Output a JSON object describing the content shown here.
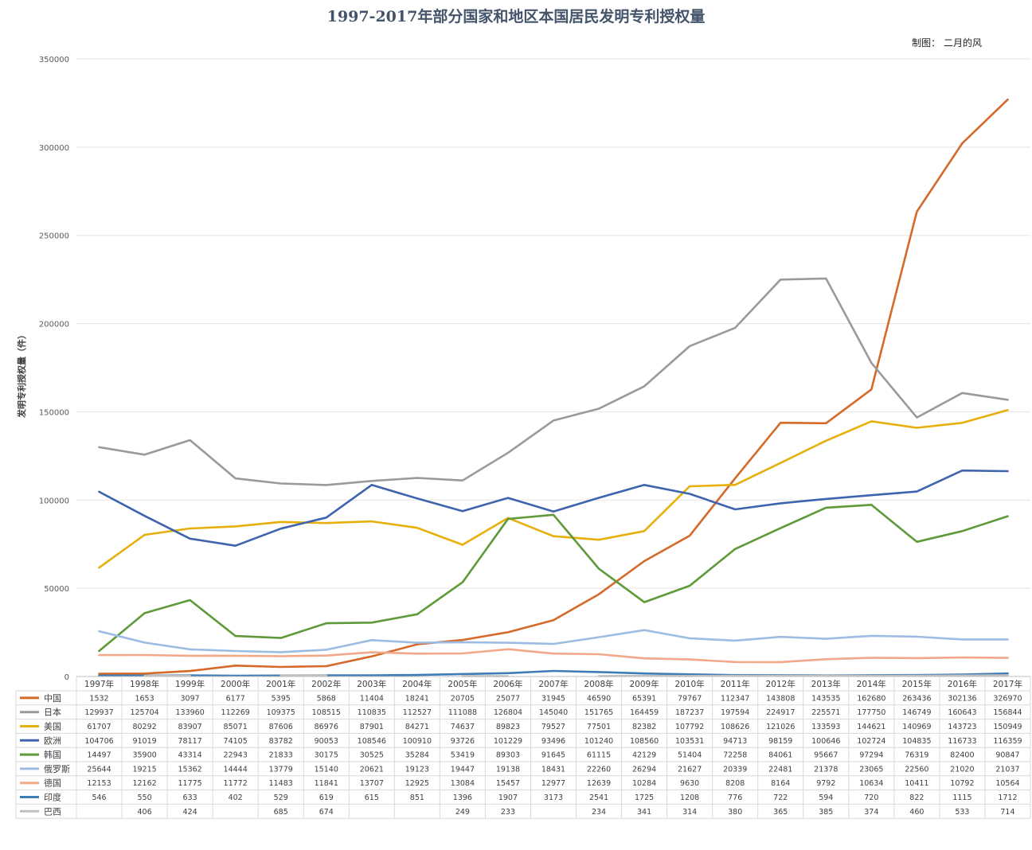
{
  "chart_data": {
    "type": "line",
    "title": "1997-2017年部分国家和地区本国居民发明专利授权量",
    "credit": "制图： 二月的风",
    "ylabel": "发明专利授权量（件）",
    "xlabel": "",
    "ylim": [
      0,
      350000
    ],
    "yticks": [
      "0",
      "50000",
      "100000",
      "150000",
      "200000",
      "250000",
      "300000",
      "350000"
    ],
    "categories": [
      "1997年",
      "1998年",
      "1999年",
      "2000年",
      "2001年",
      "2002年",
      "2003年",
      "2004年",
      "2005年",
      "2006年",
      "2007年",
      "2008年",
      "2009年",
      "2010年",
      "2011年",
      "2012年",
      "2013年",
      "2014年",
      "2015年",
      "2016年",
      "2017年"
    ],
    "grid": true,
    "legend": "data-table-left",
    "series": [
      {
        "name": "中国",
        "color": "#D5692A",
        "values": [
          1532,
          1653,
          3097,
          6177,
          5395,
          5868,
          11404,
          18241,
          20705,
          25077,
          31945,
          46590,
          65391,
          79767,
          112347,
          143808,
          143535,
          162680,
          263436,
          302136,
          326970
        ]
      },
      {
        "name": "日本",
        "color": "#9A9A9A",
        "values": [
          129937,
          125704,
          133960,
          112269,
          109375,
          108515,
          110835,
          112527,
          111088,
          126804,
          145040,
          151765,
          164459,
          187237,
          197594,
          224917,
          225571,
          177750,
          146749,
          160643,
          156844
        ]
      },
      {
        "name": "美国",
        "color": "#E6AF0B",
        "values": [
          61707,
          80292,
          83907,
          85071,
          87606,
          86976,
          87901,
          84271,
          74637,
          89823,
          79527,
          77501,
          82382,
          107792,
          108626,
          121026,
          133593,
          144621,
          140969,
          143723,
          150949
        ]
      },
      {
        "name": "欧洲",
        "color": "#3D64AD",
        "values": [
          104706,
          91019,
          78117,
          74105,
          83782,
          90053,
          108546,
          100910,
          93726,
          101229,
          93496,
          101240,
          108560,
          103531,
          94713,
          98159,
          100646,
          102724,
          104835,
          116733,
          116359
        ]
      },
      {
        "name": "韩国",
        "color": "#5E9A3A",
        "values": [
          14497,
          35900,
          43314,
          22943,
          21833,
          30175,
          30525,
          35284,
          53419,
          89303,
          91645,
          61115,
          42129,
          51404,
          72258,
          84061,
          95667,
          97294,
          76319,
          82400,
          90847
        ]
      },
      {
        "name": "俄罗斯",
        "color": "#9DBCE2",
        "values": [
          25644,
          19215,
          15362,
          14444,
          13779,
          15140,
          20621,
          19123,
          19447,
          19138,
          18431,
          22260,
          26294,
          21627,
          20339,
          22481,
          21378,
          23065,
          22560,
          21020,
          21037
        ]
      },
      {
        "name": "德国",
        "color": "#F1A98A",
        "values": [
          12153,
          12162,
          11775,
          11772,
          11483,
          11841,
          13707,
          12925,
          13084,
          15457,
          12977,
          12639,
          10284,
          9630,
          8208,
          8164,
          9792,
          10634,
          10411,
          10792,
          10564
        ]
      },
      {
        "name": "印度",
        "color": "#3E7CB7",
        "values": [
          546,
          550,
          633,
          402,
          529,
          619,
          615,
          851,
          1396,
          1907,
          3173,
          2541,
          1725,
          1208,
          776,
          722,
          594,
          720,
          822,
          1115,
          1712
        ]
      },
      {
        "name": "巴西",
        "color": "#C0C0C0",
        "values": [
          null,
          406,
          424,
          null,
          685,
          674,
          null,
          null,
          249,
          233,
          null,
          234,
          341,
          314,
          380,
          365,
          385,
          374,
          460,
          533,
          714
        ]
      }
    ]
  }
}
